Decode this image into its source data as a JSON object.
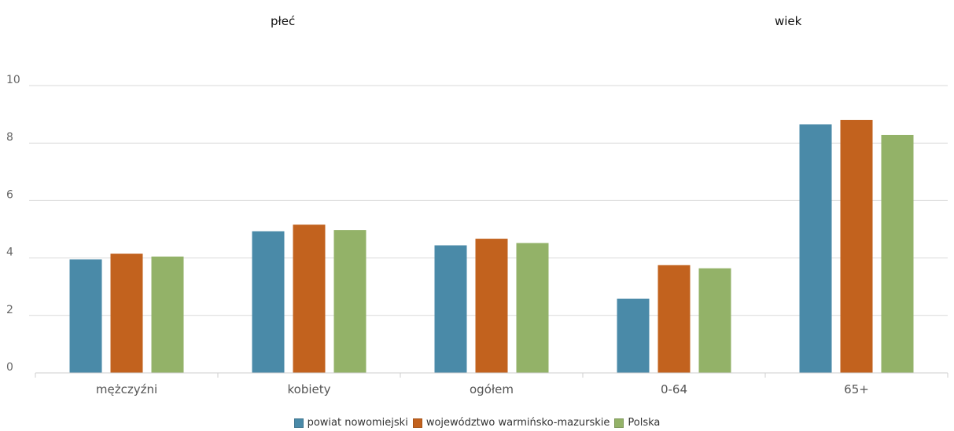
{
  "groups": {
    "sex": "płeć",
    "age": "wiek"
  },
  "colors": {
    "series_1": "#4a8aa8",
    "series_2": "#c2621e",
    "series_3": "#93b268",
    "grid": "#d9d9d9",
    "axis": "#cfcfcf"
  },
  "chart_data": {
    "type": "bar",
    "title": "",
    "xlabel": "",
    "ylabel": "",
    "categories": [
      "mężczyźni",
      "kobiety",
      "ogółem",
      "0-64",
      "65+"
    ],
    "ylim": [
      0,
      10
    ],
    "yticks": [
      0,
      2,
      4,
      6,
      8,
      10
    ],
    "grid": true,
    "legend_position": "bottom",
    "series": [
      {
        "name": "powiat nowomiejski",
        "values": [
          3.95,
          4.93,
          4.44,
          2.58,
          8.65
        ]
      },
      {
        "name": "województwo warmińsko-mazurskie",
        "values": [
          4.15,
          5.16,
          4.67,
          3.75,
          8.8
        ]
      },
      {
        "name": "Polska",
        "values": [
          4.05,
          4.97,
          4.52,
          3.64,
          8.28
        ]
      }
    ]
  }
}
